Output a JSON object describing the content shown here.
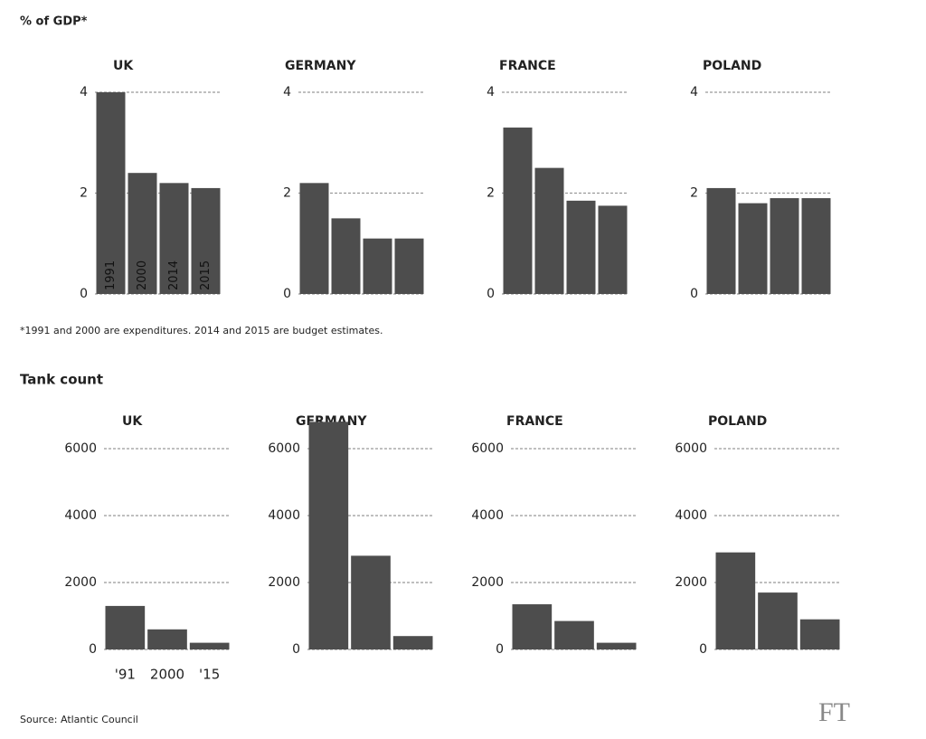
{
  "subtitle": "% of GDP*",
  "footnote": "*1991 and 2000 are expenditures. 2014 and 2015 are budget estimates.",
  "tank_title": "Tank count",
  "source": "Source: Atlantic Council",
  "logo": "FT",
  "chart_data": [
    {
      "type": "bar",
      "title": "UK",
      "categories": [
        "1991",
        "2000",
        "2014",
        "2015"
      ],
      "values": [
        4.0,
        2.4,
        2.2,
        2.1
      ],
      "color": "#4d4d4d",
      "ylim": [
        0,
        4
      ],
      "yticks": [
        0,
        2,
        4
      ],
      "grid": true
    },
    {
      "type": "bar",
      "title": "GERMANY",
      "categories": [
        null,
        null,
        null,
        null
      ],
      "values": [
        2.2,
        1.5,
        1.1,
        1.1
      ],
      "color": "#4d4d4d",
      "ylim": [
        0,
        4
      ],
      "yticks": [
        0,
        2,
        4
      ],
      "grid": true
    },
    {
      "type": "bar",
      "title": "FRANCE",
      "categories": [
        null,
        null,
        null,
        null
      ],
      "values": [
        3.3,
        2.5,
        1.85,
        1.75
      ],
      "color": "#4d4d4d",
      "ylim": [
        0,
        4
      ],
      "yticks": [
        0,
        2,
        4
      ],
      "grid": true
    },
    {
      "type": "bar",
      "title": "POLAND",
      "categories": [
        null,
        null,
        null,
        null
      ],
      "values": [
        2.1,
        1.8,
        1.9,
        1.9
      ],
      "color": "#4d4d4d",
      "ylim": [
        0,
        4
      ],
      "yticks": [
        0,
        2,
        4
      ],
      "grid": true
    },
    {
      "type": "bar",
      "title": "UK",
      "categories": [
        "'91",
        "2000",
        "'15"
      ],
      "values": [
        1300,
        600,
        200
      ],
      "color": "#4d4d4d",
      "ylim": [
        0,
        7000
      ],
      "yticks": [
        0,
        2000,
        4000,
        6000
      ],
      "grid": true
    },
    {
      "type": "bar",
      "title": "GERMANY",
      "categories": [
        null,
        null,
        null
      ],
      "values": [
        6800,
        2800,
        400
      ],
      "color": "#4d4d4d",
      "ylim": [
        0,
        7000
      ],
      "yticks": [
        0,
        2000,
        4000,
        6000
      ],
      "grid": true
    },
    {
      "type": "bar",
      "title": "FRANCE",
      "categories": [
        null,
        null,
        null
      ],
      "values": [
        1350,
        850,
        200
      ],
      "color": "#4d4d4d",
      "ylim": [
        0,
        7000
      ],
      "yticks": [
        0,
        2000,
        4000,
        6000
      ],
      "grid": true
    },
    {
      "type": "bar",
      "title": "POLAND",
      "categories": [
        null,
        null,
        null
      ],
      "values": [
        2900,
        1700,
        900
      ],
      "color": "#4d4d4d",
      "ylim": [
        0,
        7000
      ],
      "yticks": [
        0,
        2000,
        4000,
        6000
      ],
      "grid": true
    }
  ]
}
